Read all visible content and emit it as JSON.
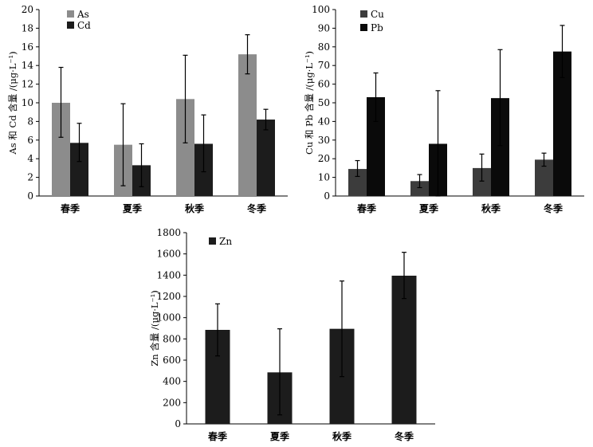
{
  "chart_data": [
    {
      "type": "bar",
      "title": "",
      "xlabel": "",
      "ylabel": "As 和 Cd 含量 /(μg·L⁻¹)",
      "ylim": [
        0,
        20
      ],
      "yticks": [
        0,
        2,
        4,
        6,
        8,
        10,
        12,
        14,
        16,
        18,
        20
      ],
      "categories": [
        "春季",
        "夏季",
        "秋季",
        "冬季"
      ],
      "series": [
        {
          "name": "As",
          "color": "#8c8c8c",
          "values": [
            10.0,
            5.5,
            10.4,
            15.2
          ],
          "err_low": [
            6.3,
            1.1,
            5.7,
            13.1
          ],
          "err_high": [
            13.8,
            9.9,
            15.1,
            17.3
          ]
        },
        {
          "name": "Cd",
          "color": "#1c1c1c",
          "values": [
            5.7,
            3.3,
            5.6,
            8.2
          ],
          "err_low": [
            3.7,
            1.0,
            2.6,
            7.1
          ],
          "err_high": [
            7.8,
            5.6,
            8.7,
            9.3
          ]
        }
      ]
    },
    {
      "type": "bar",
      "title": "",
      "xlabel": "",
      "ylabel": "Cu 和 Pb 含量 /(μg·L⁻¹)",
      "ylim": [
        0,
        100
      ],
      "yticks": [
        0,
        10,
        20,
        30,
        40,
        50,
        60,
        70,
        80,
        90,
        100
      ],
      "categories": [
        "春季",
        "夏季",
        "秋季",
        "冬季"
      ],
      "series": [
        {
          "name": "Cu",
          "color": "#3c3c3c",
          "values": [
            14.5,
            8.0,
            15.0,
            19.5
          ],
          "err_low": [
            10.5,
            4.5,
            8.0,
            16.0
          ],
          "err_high": [
            19.0,
            11.5,
            22.5,
            23.0
          ]
        },
        {
          "name": "Pb",
          "color": "#0a0a0a",
          "values": [
            53.0,
            28.0,
            52.5,
            77.5
          ],
          "err_low": [
            40.0,
            0.0,
            27.0,
            63.5
          ],
          "err_high": [
            66.0,
            56.5,
            78.5,
            91.5
          ]
        }
      ]
    },
    {
      "type": "bar",
      "title": "",
      "xlabel": "",
      "ylabel": "Zn 含量 /(μg·L⁻¹)",
      "ylim": [
        0,
        1800
      ],
      "yticks": [
        0,
        200,
        400,
        600,
        800,
        1000,
        1200,
        1400,
        1600,
        1800
      ],
      "categories": [
        "春季",
        "夏季",
        "秋季",
        "冬季"
      ],
      "series": [
        {
          "name": "Zn",
          "color": "#1c1c1c",
          "values": [
            885,
            485,
            895,
            1395
          ],
          "err_low": [
            640,
            85,
            445,
            1180
          ],
          "err_high": [
            1130,
            895,
            1345,
            1615
          ]
        }
      ]
    }
  ]
}
